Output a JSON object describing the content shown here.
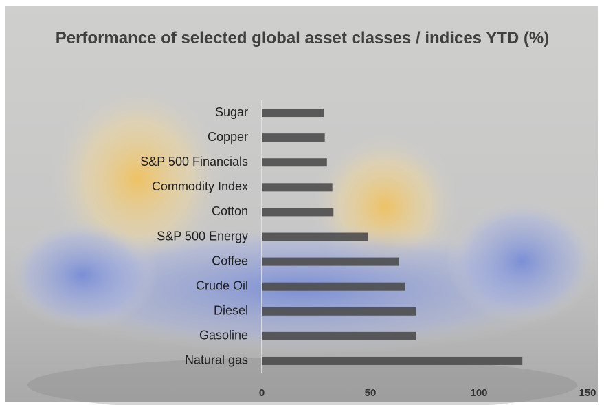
{
  "chart_data": {
    "type": "bar",
    "orientation": "horizontal",
    "title": "Performance of selected global asset classes / indices YTD (%)",
    "categories": [
      "Sugar",
      "Copper",
      "S&P 500 Financials",
      "Commodity Index",
      "Cotton",
      "S&P 500 Energy",
      "Coffee",
      "Crude Oil",
      "Diesel",
      "Gasoline",
      "Natural gas"
    ],
    "values": [
      28.5,
      29,
      30,
      32.5,
      33,
      49,
      63,
      66,
      71,
      71,
      120
    ],
    "color": "#4d4d4d",
    "xlim": [
      0,
      150
    ],
    "xticks": [
      0,
      50,
      100,
      150
    ],
    "grid": false
  }
}
